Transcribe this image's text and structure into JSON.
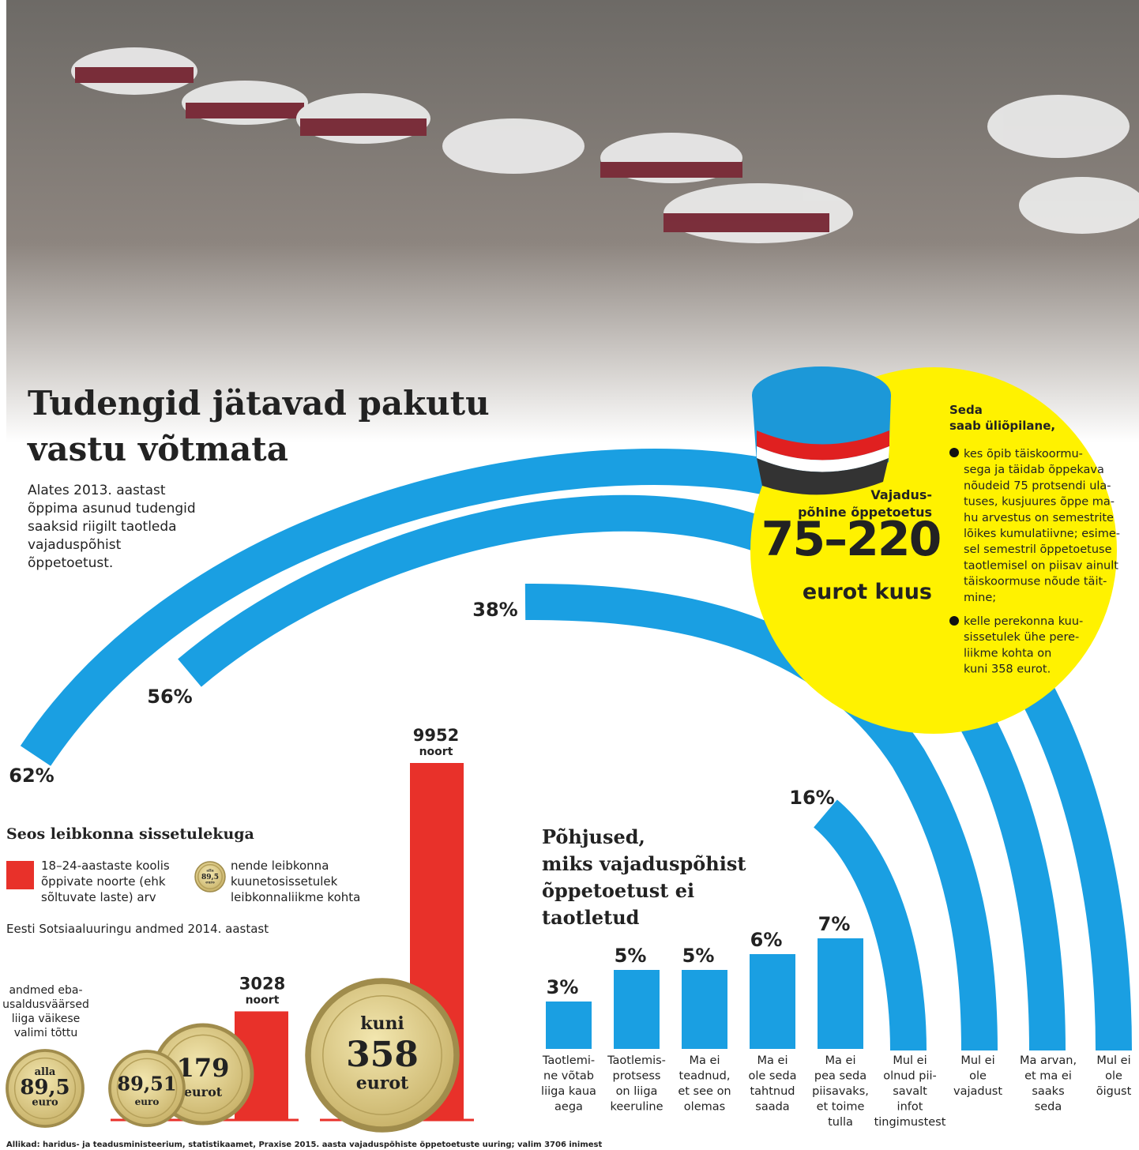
{
  "header": {
    "title": [
      "Tudengid jätavad pakutu",
      "vastu võtmata"
    ],
    "intro": [
      "Alates 2013. aastast",
      "õppima asunud tudengid",
      "saaksid riigilt taotleda",
      "vajaduspõhist",
      "õppetoetust."
    ]
  },
  "support": {
    "label": [
      "Vajadus-",
      "põhine õppetoetus"
    ],
    "amount": "75–220",
    "unit": "eurot kuus",
    "who": [
      "Seda",
      "saab üliõpilane,"
    ],
    "conditions": [
      [
        "kes õpib täiskoormu-",
        "sega ja täidab õppekava",
        "nõudeid 75 protsendi ula-",
        "tuses, kusjuures õppe ma-",
        "hu arvestus on semestrite",
        "lõikes kumulatiivne; esime-",
        "sel semestril õppetoetuse",
        "taotlemisel on piisav ainult",
        "täiskoormuse nõude täit-",
        "mine;"
      ],
      [
        "kelle perekonna kuu-",
        "sissetulek ühe pere-",
        "liikme kohta on",
        "kuni 358 eurot."
      ]
    ]
  },
  "income": {
    "title": "Seos leibkonna sissetulekuga",
    "legend": [
      [
        "18–24-aastaste koolis",
        "õppivate noorte (ehk",
        "sõltuvate laste) arv"
      ],
      [
        "nende leibkonna",
        "kuunetosissetulek",
        "leibkonnaliikme kohta"
      ]
    ],
    "legend_coin": [
      "alla",
      "89,5",
      "euro"
    ],
    "source": "Eesti Sotsiaaluuringu andmed 2014. aastast",
    "note": [
      "andmed eba-",
      "usaldusväärsed",
      "liiga väikese",
      "valimi tõttu"
    ],
    "groups": [
      {
        "coins": [
          [
            "alla",
            "89,5",
            "euro"
          ]
        ]
      },
      {
        "coins": [
          [
            "89,51",
            "euro"
          ],
          [
            "179",
            "eurot"
          ]
        ],
        "bar": {
          "value": 3028,
          "unit": "noort"
        }
      },
      {
        "coins": [
          [
            "kuni",
            "358",
            "eurot"
          ]
        ],
        "bar": {
          "value": 9952,
          "unit": "noort"
        }
      }
    ]
  },
  "reasons": {
    "title": [
      "Põhjused,",
      "miks vajaduspõhist",
      "õppetoetust ei",
      "taotletud"
    ],
    "items": [
      {
        "label": [
          "Taotlemi-",
          "ne võtab",
          "liiga kaua",
          "aega"
        ],
        "value": 3,
        "value_label": "3%"
      },
      {
        "label": [
          "Taotlemis-",
          "protsess",
          "on liiga",
          "keeruline"
        ],
        "value": 5,
        "value_label": "5%"
      },
      {
        "label": [
          "Ma ei",
          "teadnud,",
          "et see on",
          "olemas"
        ],
        "value": 5,
        "value_label": "5%"
      },
      {
        "label": [
          "Ma ei",
          "ole seda",
          "tahtnud",
          "saada"
        ],
        "value": 6,
        "value_label": "6%"
      },
      {
        "label": [
          "Ma ei",
          "pea seda",
          "piisavaks,",
          "et toime",
          "tulla"
        ],
        "value": 7,
        "value_label": "7%"
      },
      {
        "label": [
          "Mul ei",
          "olnud pii-",
          "savalt",
          "infot",
          "tingimustest"
        ],
        "value": 16,
        "value_label": "16%"
      },
      {
        "label": [
          "Mul ei",
          "ole",
          "vajadust"
        ],
        "value": 38,
        "value_label": "38%"
      },
      {
        "label": [
          "Ma arvan,",
          "et ma ei",
          "saaks",
          "seda"
        ],
        "value": 56,
        "value_label": "56%"
      },
      {
        "label": [
          "Mul ei",
          "ole",
          "õigust"
        ],
        "value": 62,
        "value_label": "62%"
      }
    ]
  },
  "footer": "Allikad: haridus- ja teadusministeerium, statistikaamet, Praxise 2015. aasta vajaduspõhiste õppetoetuste uuring; valim 3706 inimest"
}
